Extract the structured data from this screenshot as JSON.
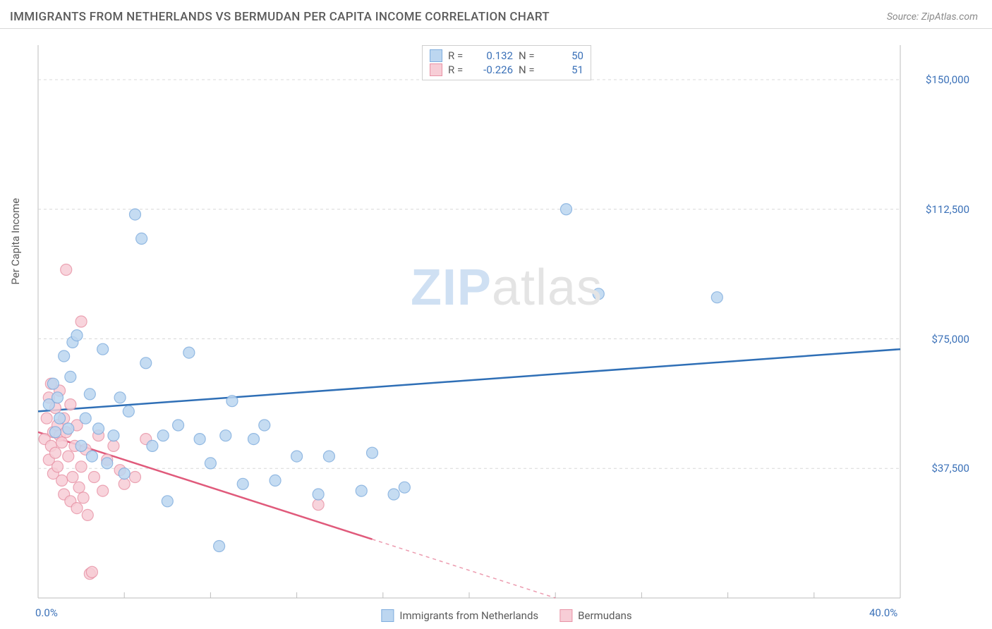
{
  "header": {
    "title": "IMMIGRANTS FROM NETHERLANDS VS BERMUDAN PER CAPITA INCOME CORRELATION CHART",
    "source_prefix": "Source: ",
    "source_name": "ZipAtlas.com"
  },
  "watermark": {
    "part1": "ZIP",
    "part2": "atlas"
  },
  "chart": {
    "type": "scatter",
    "background_color": "#ffffff",
    "grid_color": "#d8d8d8",
    "axis_line_color": "#bdbdbd",
    "y_axis_title": "Per Capita Income",
    "xlim": [
      0,
      40
    ],
    "ylim": [
      0,
      160000
    ],
    "x_ticks_minor": [
      0,
      4,
      8,
      12,
      16,
      20,
      24,
      28,
      32,
      36,
      40
    ],
    "x_tick_labels": [
      {
        "v": 0,
        "label": "0.0%"
      },
      {
        "v": 40,
        "label": "40.0%"
      }
    ],
    "y_gridlines": [
      37500,
      75000,
      112500,
      150000
    ],
    "y_tick_labels": [
      {
        "v": 37500,
        "label": "$37,500"
      },
      {
        "v": 75000,
        "label": "$75,000"
      },
      {
        "v": 112500,
        "label": "$112,500"
      },
      {
        "v": 150000,
        "label": "$150,000"
      }
    ],
    "series": [
      {
        "name": "Immigrants from Netherlands",
        "color_fill": "#bcd6f0",
        "color_stroke": "#7fadde",
        "trend_color": "#2f6fb6",
        "marker_radius": 8,
        "stats": {
          "R": "0.132",
          "N": "50"
        },
        "trend": {
          "x0": 0,
          "y0": 54000,
          "x1": 40,
          "y1": 72000,
          "dash_after_x": null
        },
        "points": [
          [
            0.5,
            56000
          ],
          [
            0.7,
            62000
          ],
          [
            0.8,
            48000
          ],
          [
            0.9,
            58000
          ],
          [
            1.0,
            52000
          ],
          [
            1.2,
            70000
          ],
          [
            1.4,
            49000
          ],
          [
            1.5,
            64000
          ],
          [
            1.6,
            74000
          ],
          [
            1.8,
            76000
          ],
          [
            2.0,
            44000
          ],
          [
            2.2,
            52000
          ],
          [
            2.4,
            59000
          ],
          [
            2.5,
            41000
          ],
          [
            2.8,
            49000
          ],
          [
            3.0,
            72000
          ],
          [
            3.2,
            39000
          ],
          [
            3.5,
            47000
          ],
          [
            3.8,
            58000
          ],
          [
            4.0,
            36000
          ],
          [
            4.2,
            54000
          ],
          [
            4.5,
            111000
          ],
          [
            4.8,
            104000
          ],
          [
            5.0,
            68000
          ],
          [
            5.3,
            44000
          ],
          [
            5.8,
            47000
          ],
          [
            6.0,
            28000
          ],
          [
            6.5,
            50000
          ],
          [
            7.0,
            71000
          ],
          [
            7.5,
            46000
          ],
          [
            8.0,
            39000
          ],
          [
            8.4,
            15000
          ],
          [
            8.7,
            47000
          ],
          [
            9.0,
            57000
          ],
          [
            9.5,
            33000
          ],
          [
            10.0,
            46000
          ],
          [
            10.5,
            50000
          ],
          [
            11.0,
            34000
          ],
          [
            12.0,
            41000
          ],
          [
            13.0,
            30000
          ],
          [
            13.5,
            41000
          ],
          [
            15.0,
            31000
          ],
          [
            15.5,
            42000
          ],
          [
            16.5,
            30000
          ],
          [
            17.0,
            32000
          ],
          [
            24.5,
            112500
          ],
          [
            26.0,
            88000
          ],
          [
            31.5,
            87000
          ]
        ]
      },
      {
        "name": "Bermudans",
        "color_fill": "#f7cdd6",
        "color_stroke": "#e893a6",
        "trend_color": "#e05a7b",
        "marker_radius": 8,
        "stats": {
          "R": "-0.226",
          "N": "51"
        },
        "trend": {
          "x0": 0,
          "y0": 48000,
          "x1": 24,
          "y1": 0,
          "dash_after_x": 15.5
        },
        "points": [
          [
            0.3,
            46000
          ],
          [
            0.4,
            52000
          ],
          [
            0.5,
            40000
          ],
          [
            0.5,
            58000
          ],
          [
            0.6,
            44000
          ],
          [
            0.6,
            62000
          ],
          [
            0.7,
            48000
          ],
          [
            0.7,
            36000
          ],
          [
            0.8,
            55000
          ],
          [
            0.8,
            42000
          ],
          [
            0.9,
            50000
          ],
          [
            0.9,
            38000
          ],
          [
            1.0,
            47000
          ],
          [
            1.0,
            60000
          ],
          [
            1.1,
            34000
          ],
          [
            1.1,
            45000
          ],
          [
            1.2,
            52000
          ],
          [
            1.2,
            30000
          ],
          [
            1.3,
            48000
          ],
          [
            1.3,
            95000
          ],
          [
            1.4,
            41000
          ],
          [
            1.5,
            28000
          ],
          [
            1.5,
            56000
          ],
          [
            1.6,
            35000
          ],
          [
            1.7,
            44000
          ],
          [
            1.8,
            26000
          ],
          [
            1.8,
            50000
          ],
          [
            1.9,
            32000
          ],
          [
            2.0,
            38000
          ],
          [
            2.0,
            80000
          ],
          [
            2.1,
            29000
          ],
          [
            2.2,
            43000
          ],
          [
            2.3,
            24000
          ],
          [
            2.4,
            7000
          ],
          [
            2.5,
            7500
          ],
          [
            2.6,
            35000
          ],
          [
            2.8,
            47000
          ],
          [
            3.0,
            31000
          ],
          [
            3.2,
            40000
          ],
          [
            3.5,
            44000
          ],
          [
            3.8,
            37000
          ],
          [
            4.0,
            33000
          ],
          [
            4.5,
            35000
          ],
          [
            5.0,
            46000
          ],
          [
            13.0,
            27000
          ]
        ]
      }
    ],
    "stats_legend_labels": {
      "r": "R =",
      "n": "N ="
    },
    "bottom_legend": [
      {
        "label": "Immigrants from Netherlands",
        "fill": "#bcd6f0",
        "stroke": "#7fadde"
      },
      {
        "label": "Bermudans",
        "fill": "#f7cdd6",
        "stroke": "#e893a6"
      }
    ]
  }
}
